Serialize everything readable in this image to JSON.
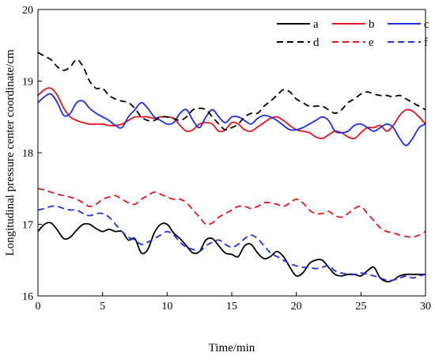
{
  "chart_data": {
    "type": "line",
    "title": "",
    "xlabel": "Time/min",
    "ylabel": "Longitudinal pressure center coordinate/cm",
    "xlim": [
      0,
      30
    ],
    "ylim": [
      16,
      20
    ],
    "xticks": [
      0,
      5,
      10,
      15,
      20,
      25,
      30
    ],
    "yticks": [
      16,
      17,
      18,
      19,
      20
    ],
    "grid": false,
    "legend_position": "top-right",
    "series": [
      {
        "name": "a",
        "color": "#000000",
        "dash": "solid",
        "x": [
          0,
          0.5,
          1,
          1.5,
          2,
          2.5,
          3,
          3.5,
          4,
          4.5,
          5,
          5.5,
          6,
          6.5,
          7,
          7.5,
          8,
          8.5,
          9,
          9.5,
          10,
          10.5,
          11,
          11.5,
          12,
          12.5,
          13,
          13.5,
          14,
          14.5,
          15,
          15.5,
          16,
          16.5,
          17,
          17.5,
          18,
          18.5,
          19,
          19.5,
          20,
          20.5,
          21,
          21.5,
          22,
          22.5,
          23,
          23.5,
          24,
          24.5,
          25,
          25.5,
          26,
          26.5,
          27,
          27.5,
          28,
          28.5,
          29,
          29.5,
          30
        ],
        "y": [
          16.9,
          17.0,
          17.02,
          16.92,
          16.8,
          16.82,
          16.92,
          17.0,
          17.0,
          16.94,
          16.9,
          16.93,
          16.9,
          16.9,
          16.78,
          16.8,
          16.6,
          16.65,
          16.88,
          17.0,
          17.0,
          16.88,
          16.8,
          16.7,
          16.6,
          16.62,
          16.78,
          16.8,
          16.7,
          16.6,
          16.58,
          16.55,
          16.7,
          16.72,
          16.6,
          16.52,
          16.55,
          16.62,
          16.55,
          16.4,
          16.28,
          16.32,
          16.45,
          16.5,
          16.5,
          16.4,
          16.3,
          16.28,
          16.3,
          16.3,
          16.28,
          16.35,
          16.4,
          16.25,
          16.2,
          16.22,
          16.28,
          16.3,
          16.3,
          16.3,
          16.3
        ]
      },
      {
        "name": "b",
        "color": "#e8141d",
        "dash": "solid",
        "x": [
          0,
          0.5,
          1,
          1.5,
          2,
          2.5,
          3,
          3.5,
          4,
          4.5,
          5,
          5.5,
          6,
          6.5,
          7,
          7.5,
          8,
          8.5,
          9,
          9.5,
          10,
          10.5,
          11,
          11.5,
          12,
          12.5,
          13,
          13.5,
          14,
          14.5,
          15,
          15.5,
          16,
          16.5,
          17,
          17.5,
          18,
          18.5,
          19,
          19.5,
          20,
          20.5,
          21,
          21.5,
          22,
          22.5,
          23,
          23.5,
          24,
          24.5,
          25,
          25.5,
          26,
          26.5,
          27,
          27.5,
          28,
          28.5,
          29,
          29.5,
          30
        ],
        "y": [
          18.8,
          18.88,
          18.9,
          18.8,
          18.62,
          18.5,
          18.45,
          18.42,
          18.4,
          18.4,
          18.4,
          18.38,
          18.38,
          18.4,
          18.45,
          18.5,
          18.5,
          18.5,
          18.48,
          18.5,
          18.5,
          18.48,
          18.38,
          18.3,
          18.32,
          18.4,
          18.42,
          18.4,
          18.3,
          18.32,
          18.42,
          18.4,
          18.32,
          18.3,
          18.36,
          18.42,
          18.48,
          18.5,
          18.45,
          18.38,
          18.32,
          18.3,
          18.28,
          18.22,
          18.2,
          18.25,
          18.3,
          18.28,
          18.22,
          18.2,
          18.28,
          18.35,
          18.35,
          18.38,
          18.3,
          18.38,
          18.52,
          18.6,
          18.58,
          18.5,
          18.4
        ]
      },
      {
        "name": "c",
        "color": "#1c2ee6",
        "dash": "solid",
        "x": [
          0,
          0.5,
          1,
          1.5,
          2,
          2.5,
          3,
          3.5,
          4,
          4.5,
          5,
          5.5,
          6,
          6.5,
          7,
          7.5,
          8,
          8.5,
          9,
          9.5,
          10,
          10.5,
          11,
          11.5,
          12,
          12.5,
          13,
          13.5,
          14,
          14.5,
          15,
          15.5,
          16,
          16.5,
          17,
          17.5,
          18,
          18.5,
          19,
          19.5,
          20,
          20.5,
          21,
          21.5,
          22,
          22.5,
          23,
          23.5,
          24,
          24.5,
          25,
          25.5,
          26,
          26.5,
          27,
          27.5,
          28,
          28.5,
          29,
          29.5,
          30
        ],
        "y": [
          18.7,
          18.78,
          18.82,
          18.7,
          18.52,
          18.55,
          18.7,
          18.72,
          18.62,
          18.55,
          18.5,
          18.45,
          18.38,
          18.35,
          18.5,
          18.6,
          18.7,
          18.62,
          18.5,
          18.45,
          18.4,
          18.42,
          18.55,
          18.6,
          18.45,
          18.35,
          18.5,
          18.6,
          18.5,
          18.42,
          18.5,
          18.5,
          18.45,
          18.4,
          18.48,
          18.52,
          18.5,
          18.45,
          18.38,
          18.32,
          18.32,
          18.35,
          18.4,
          18.45,
          18.5,
          18.45,
          18.3,
          18.28,
          18.3,
          18.38,
          18.4,
          18.35,
          18.3,
          18.35,
          18.4,
          18.35,
          18.2,
          18.1,
          18.2,
          18.35,
          18.4
        ]
      },
      {
        "name": "d",
        "color": "#000000",
        "dash": "dashed",
        "x": [
          0,
          0.5,
          1,
          1.5,
          2,
          2.5,
          3,
          3.5,
          4,
          4.5,
          5,
          5.5,
          6,
          6.5,
          7,
          7.5,
          8,
          8.5,
          9,
          9.5,
          10,
          10.5,
          11,
          11.5,
          12,
          12.5,
          13,
          13.5,
          14,
          14.5,
          15,
          15.5,
          16,
          16.5,
          17,
          17.5,
          18,
          18.5,
          19,
          19.5,
          20,
          20.5,
          21,
          21.5,
          22,
          22.5,
          23,
          23.5,
          24,
          24.5,
          25,
          25.5,
          26,
          26.5,
          27,
          27.5,
          28,
          28.5,
          29,
          29.5,
          30
        ],
        "y": [
          19.4,
          19.35,
          19.3,
          19.2,
          19.15,
          19.2,
          19.3,
          19.2,
          19.0,
          18.9,
          18.9,
          18.8,
          18.75,
          18.72,
          18.7,
          18.62,
          18.5,
          18.45,
          18.45,
          18.5,
          18.5,
          18.48,
          18.45,
          18.5,
          18.6,
          18.62,
          18.6,
          18.5,
          18.4,
          18.32,
          18.35,
          18.4,
          18.5,
          18.55,
          18.55,
          18.65,
          18.72,
          18.8,
          18.88,
          18.85,
          18.75,
          18.7,
          18.65,
          18.65,
          18.65,
          18.6,
          18.55,
          18.6,
          18.7,
          18.75,
          18.82,
          18.85,
          18.82,
          18.8,
          18.8,
          18.78,
          18.8,
          18.75,
          18.7,
          18.65,
          18.6
        ]
      },
      {
        "name": "e",
        "color": "#e8141d",
        "dash": "dashed",
        "x": [
          0,
          0.5,
          1,
          1.5,
          2,
          2.5,
          3,
          3.5,
          4,
          4.5,
          5,
          5.5,
          6,
          6.5,
          7,
          7.5,
          8,
          8.5,
          9,
          9.5,
          10,
          10.5,
          11,
          11.5,
          12,
          12.5,
          13,
          13.5,
          14,
          14.5,
          15,
          15.5,
          16,
          16.5,
          17,
          17.5,
          18,
          18.5,
          19,
          19.5,
          20,
          20.5,
          21,
          21.5,
          22,
          22.5,
          23,
          23.5,
          24,
          24.5,
          25,
          25.5,
          26,
          26.5,
          27,
          27.5,
          28,
          28.5,
          29,
          29.5,
          30
        ],
        "y": [
          17.5,
          17.48,
          17.45,
          17.42,
          17.4,
          17.38,
          17.35,
          17.3,
          17.25,
          17.28,
          17.35,
          17.38,
          17.4,
          17.35,
          17.3,
          17.28,
          17.35,
          17.4,
          17.45,
          17.42,
          17.38,
          17.35,
          17.35,
          17.3,
          17.2,
          17.1,
          17.0,
          17.02,
          17.1,
          17.15,
          17.2,
          17.25,
          17.25,
          17.22,
          17.25,
          17.3,
          17.3,
          17.28,
          17.25,
          17.3,
          17.35,
          17.3,
          17.2,
          17.15,
          17.15,
          17.18,
          17.12,
          17.1,
          17.15,
          17.22,
          17.25,
          17.15,
          17.05,
          16.95,
          16.9,
          16.88,
          16.85,
          16.83,
          16.82,
          16.85,
          16.9
        ]
      },
      {
        "name": "f",
        "color": "#1c2ee6",
        "dash": "dashed",
        "x": [
          0,
          0.5,
          1,
          1.5,
          2,
          2.5,
          3,
          3.5,
          4,
          4.5,
          5,
          5.5,
          6,
          6.5,
          7,
          7.5,
          8,
          8.5,
          9,
          9.5,
          10,
          10.5,
          11,
          11.5,
          12,
          12.5,
          13,
          13.5,
          14,
          14.5,
          15,
          15.5,
          16,
          16.5,
          17,
          17.5,
          18,
          18.5,
          19,
          19.5,
          20,
          20.5,
          21,
          21.5,
          22,
          22.5,
          23,
          23.5,
          24,
          24.5,
          25,
          25.5,
          26,
          26.5,
          27,
          27.5,
          28,
          28.5,
          29,
          29.5,
          30
        ],
        "y": [
          17.2,
          17.22,
          17.25,
          17.25,
          17.22,
          17.2,
          17.2,
          17.15,
          17.12,
          17.15,
          17.15,
          17.1,
          17.0,
          16.9,
          16.82,
          16.78,
          16.72,
          16.75,
          16.8,
          16.85,
          16.9,
          16.85,
          16.75,
          16.68,
          16.65,
          16.62,
          16.7,
          16.75,
          16.78,
          16.72,
          16.68,
          16.72,
          16.8,
          16.85,
          16.8,
          16.7,
          16.6,
          16.55,
          16.5,
          16.45,
          16.42,
          16.4,
          16.4,
          16.38,
          16.4,
          16.42,
          16.35,
          16.32,
          16.3,
          16.3,
          16.32,
          16.3,
          16.28,
          16.25,
          16.22,
          16.22,
          16.25,
          16.28,
          16.25,
          16.28,
          16.3
        ]
      }
    ]
  }
}
